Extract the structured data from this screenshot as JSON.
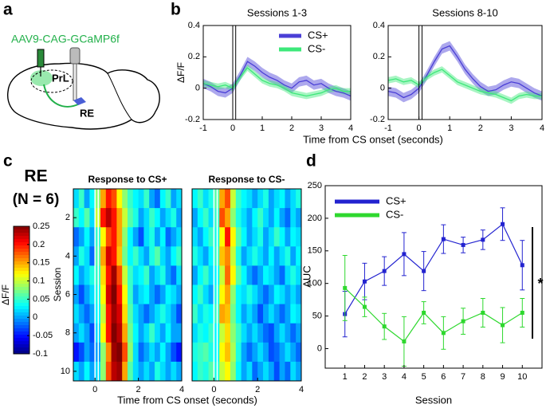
{
  "panel_labels": [
    "a",
    "b",
    "c",
    "d"
  ],
  "diagram": {
    "virus": "AAV9-CAG-GCaMP6f",
    "regions": [
      "PrL",
      "RE"
    ]
  },
  "chart_data": [
    {
      "type": "line",
      "title": "Sessions 1-3",
      "ylabel": "ΔF/F",
      "xlabel": "Time from CS onset (seconds)",
      "legend": "upper right",
      "x": [
        -1,
        -0.75,
        -0.5,
        -0.25,
        0,
        0.25,
        0.5,
        0.75,
        1,
        1.25,
        1.5,
        1.75,
        2,
        2.25,
        2.5,
        2.75,
        3,
        3.25,
        3.5,
        3.75,
        4
      ],
      "xlim": [
        -1,
        4
      ],
      "xticks": [
        -1,
        0,
        1,
        2,
        3,
        4
      ],
      "ylim": [
        -0.2,
        0.4
      ],
      "yticks": [
        -0.2,
        0,
        0.2,
        0.4
      ],
      "series": [
        {
          "name": "CS+",
          "color": "#4a3fd6",
          "values": [
            0.03,
            0.01,
            -0.02,
            -0.03,
            0.0,
            0.08,
            0.17,
            0.14,
            0.1,
            0.07,
            0.05,
            0.02,
            0.0,
            0.04,
            0.05,
            0.02,
            0.03,
            0.0,
            -0.02,
            -0.03,
            -0.05
          ],
          "errors": [
            0.03,
            0.03,
            0.03,
            0.03,
            0.03,
            0.03,
            0.03,
            0.03,
            0.03,
            0.03,
            0.03,
            0.03,
            0.03,
            0.03,
            0.03,
            0.03,
            0.03,
            0.03,
            0.03,
            0.03,
            0.03
          ]
        },
        {
          "name": "CS-",
          "color": "#3de87a",
          "values": [
            0.03,
            0.02,
            0.01,
            0.02,
            0.0,
            0.07,
            0.13,
            0.09,
            0.05,
            0.03,
            0.02,
            0.0,
            -0.03,
            -0.04,
            -0.05,
            -0.04,
            -0.03,
            -0.01,
            0.0,
            -0.02,
            -0.02
          ],
          "errors": [
            0.02,
            0.02,
            0.02,
            0.02,
            0.02,
            0.02,
            0.02,
            0.02,
            0.02,
            0.02,
            0.02,
            0.02,
            0.02,
            0.02,
            0.02,
            0.02,
            0.02,
            0.02,
            0.02,
            0.02,
            0.02
          ]
        }
      ]
    },
    {
      "type": "line",
      "title": "Sessions 8-10",
      "x": [
        -1,
        -0.75,
        -0.5,
        -0.25,
        0,
        0.25,
        0.5,
        0.75,
        1,
        1.25,
        1.5,
        1.75,
        2,
        2.25,
        2.5,
        2.75,
        3,
        3.25,
        3.5,
        3.75,
        4
      ],
      "xlim": [
        -1,
        4
      ],
      "xticks": [
        -1,
        0,
        1,
        2,
        3,
        4
      ],
      "ylim": [
        -0.2,
        0.4
      ],
      "yticks": [
        -0.2,
        0,
        0.2,
        0.4
      ],
      "series": [
        {
          "name": "CS+",
          "color": "#4a3fd6",
          "values": [
            -0.02,
            -0.03,
            -0.06,
            -0.04,
            0.0,
            0.08,
            0.17,
            0.25,
            0.27,
            0.2,
            0.12,
            0.06,
            0.01,
            -0.02,
            -0.01,
            0.02,
            0.04,
            0.03,
            0.0,
            -0.03,
            -0.05
          ],
          "errors": [
            0.03,
            0.03,
            0.03,
            0.03,
            0.03,
            0.03,
            0.03,
            0.03,
            0.03,
            0.03,
            0.03,
            0.03,
            0.03,
            0.03,
            0.03,
            0.03,
            0.03,
            0.03,
            0.03,
            0.03,
            0.03
          ]
        },
        {
          "name": "CS-",
          "color": "#3de87a",
          "values": [
            0.05,
            0.06,
            0.04,
            0.05,
            0.02,
            0.07,
            0.1,
            0.12,
            0.08,
            0.04,
            0.02,
            0.0,
            -0.02,
            -0.03,
            -0.04,
            -0.06,
            -0.08,
            -0.05,
            -0.04,
            -0.05,
            -0.05
          ],
          "errors": [
            0.02,
            0.02,
            0.02,
            0.02,
            0.02,
            0.02,
            0.02,
            0.02,
            0.02,
            0.02,
            0.02,
            0.02,
            0.02,
            0.02,
            0.02,
            0.02,
            0.02,
            0.02,
            0.02,
            0.02,
            0.02
          ]
        }
      ]
    },
    {
      "type": "heatmap",
      "title": "Response to CS+",
      "group_label": "RE",
      "n_label": "(N = 6)",
      "ylabel": "Session",
      "xlabel": "Time from CS onset (seconds)",
      "clabel": "ΔF/F",
      "clim": [
        -0.1,
        0.25
      ],
      "cticks": [
        0.25,
        0.2,
        0.15,
        0.1,
        0.05,
        0,
        -0.05,
        -0.1
      ],
      "xbins": [
        -1,
        -0.75,
        -0.5,
        -0.25,
        0,
        0.25,
        0.5,
        0.75,
        1,
        1.25,
        1.5,
        1.75,
        2,
        2.25,
        2.5,
        2.75,
        3,
        3.25,
        3.5,
        3.75,
        4
      ],
      "xlim": [
        -1,
        4
      ],
      "xticks": [
        0,
        2,
        4
      ],
      "y": [
        1,
        2,
        3,
        4,
        5,
        6,
        7,
        8,
        9,
        10
      ],
      "ylim": [
        0.5,
        10.5
      ],
      "yticks": [
        2,
        4,
        6,
        8,
        10
      ],
      "z": [
        [
          0.02,
          0.05,
          0.0,
          0.03,
          0.08,
          0.15,
          0.2,
          0.18,
          0.12,
          0.08,
          0.05,
          0.03,
          0.02,
          0.05,
          0.0,
          -0.02,
          0.03,
          0.05,
          0.0,
          0.02
        ],
        [
          0.05,
          0.03,
          0.06,
          0.02,
          0.1,
          0.2,
          0.23,
          0.2,
          0.15,
          0.1,
          0.06,
          0.04,
          0.0,
          0.02,
          0.05,
          0.03,
          0.0,
          0.02,
          0.04,
          0.0
        ],
        [
          -0.02,
          0.0,
          0.03,
          0.0,
          0.05,
          0.12,
          0.18,
          0.2,
          0.15,
          0.08,
          0.03,
          0.0,
          -0.03,
          0.02,
          0.04,
          0.0,
          0.03,
          -0.02,
          0.0,
          0.02
        ],
        [
          0.0,
          0.04,
          0.02,
          -0.02,
          0.06,
          0.15,
          0.22,
          0.2,
          0.14,
          0.07,
          0.03,
          0.05,
          0.02,
          0.0,
          0.04,
          0.06,
          0.02,
          0.0,
          0.03,
          0.05
        ],
        [
          0.03,
          0.0,
          0.02,
          0.04,
          0.05,
          0.13,
          0.2,
          0.24,
          0.18,
          0.1,
          0.05,
          0.02,
          0.03,
          0.05,
          0.0,
          0.02,
          0.04,
          0.0,
          -0.02,
          0.02
        ],
        [
          0.0,
          -0.03,
          0.0,
          0.02,
          0.04,
          0.12,
          0.22,
          0.25,
          0.2,
          0.12,
          0.05,
          0.0,
          0.02,
          0.03,
          0.0,
          -0.02,
          0.0,
          0.03,
          0.02,
          0.0
        ],
        [
          0.02,
          0.0,
          -0.02,
          0.0,
          0.03,
          0.1,
          0.2,
          0.24,
          0.22,
          0.13,
          0.06,
          0.02,
          0.0,
          -0.02,
          0.0,
          0.02,
          0.04,
          0.02,
          0.0,
          -0.03
        ],
        [
          0.0,
          0.02,
          0.0,
          -0.03,
          0.02,
          0.12,
          0.2,
          0.25,
          0.23,
          0.15,
          0.07,
          0.03,
          0.0,
          0.02,
          0.05,
          0.02,
          0.0,
          0.03,
          0.0,
          0.0
        ],
        [
          -0.05,
          -0.03,
          0.0,
          -0.02,
          0.0,
          0.08,
          0.16,
          0.24,
          0.25,
          0.18,
          0.08,
          0.02,
          -0.02,
          0.0,
          0.02,
          0.0,
          0.03,
          0.0,
          -0.03,
          -0.05
        ],
        [
          0.02,
          0.0,
          0.03,
          0.0,
          0.02,
          0.08,
          0.18,
          0.23,
          0.24,
          0.15,
          0.06,
          0.02,
          0.0,
          0.02,
          0.0,
          0.04,
          0.02,
          0.0,
          0.02,
          0.0
        ]
      ]
    },
    {
      "type": "heatmap",
      "title": "Response to CS-",
      "clim": [
        -0.1,
        0.25
      ],
      "xbins": [
        -1,
        -0.75,
        -0.5,
        -0.25,
        0,
        0.25,
        0.5,
        0.75,
        1,
        1.25,
        1.5,
        1.75,
        2,
        2.25,
        2.5,
        2.75,
        3,
        3.25,
        3.5,
        3.75,
        4
      ],
      "xlim": [
        -1,
        4
      ],
      "xticks": [
        0,
        2,
        4
      ],
      "y": [
        1,
        2,
        3,
        4,
        5,
        6,
        7,
        8,
        9,
        10
      ],
      "ylim": [
        0.5,
        10.5
      ],
      "z": [
        [
          0.03,
          0.05,
          0.02,
          0.04,
          0.06,
          0.15,
          0.18,
          0.1,
          0.05,
          0.03,
          0.02,
          0.0,
          0.02,
          0.04,
          0.0,
          0.02,
          0.03,
          0.0,
          0.02,
          0.04
        ],
        [
          0.0,
          0.03,
          0.05,
          0.02,
          0.05,
          0.18,
          0.15,
          0.08,
          0.04,
          0.02,
          0.0,
          0.03,
          0.05,
          0.02,
          0.0,
          0.03,
          0.0,
          -0.02,
          0.02,
          0.0
        ],
        [
          0.02,
          0.0,
          0.03,
          0.05,
          0.04,
          0.12,
          0.2,
          0.12,
          0.06,
          0.03,
          0.0,
          0.02,
          0.04,
          0.0,
          0.02,
          0.05,
          0.03,
          0.0,
          0.03,
          0.02
        ],
        [
          0.04,
          0.02,
          0.0,
          0.03,
          0.05,
          0.14,
          0.16,
          0.1,
          0.04,
          0.0,
          0.02,
          0.04,
          0.02,
          0.0,
          0.03,
          0.0,
          0.02,
          0.04,
          0.0,
          0.03
        ],
        [
          0.0,
          0.03,
          0.05,
          0.02,
          0.03,
          0.1,
          0.17,
          0.12,
          0.06,
          0.03,
          0.0,
          -0.02,
          0.0,
          0.03,
          0.02,
          0.0,
          -0.02,
          0.02,
          0.04,
          0.02
        ],
        [
          0.03,
          0.05,
          0.02,
          0.0,
          0.04,
          0.12,
          0.15,
          0.08,
          0.03,
          0.02,
          0.04,
          0.02,
          0.0,
          -0.02,
          0.0,
          0.03,
          0.02,
          0.0,
          0.02,
          0.0
        ],
        [
          0.05,
          0.02,
          0.04,
          0.03,
          0.05,
          0.15,
          0.14,
          0.07,
          0.03,
          0.0,
          0.02,
          0.0,
          -0.03,
          0.0,
          0.02,
          0.0,
          -0.02,
          0.0,
          0.03,
          0.02
        ],
        [
          0.02,
          0.04,
          0.03,
          0.05,
          0.03,
          0.1,
          0.13,
          0.08,
          0.05,
          0.02,
          0.0,
          0.02,
          0.0,
          -0.02,
          -0.03,
          0.0,
          0.02,
          0.0,
          -0.02,
          0.0
        ],
        [
          0.04,
          0.05,
          0.06,
          0.04,
          0.03,
          0.12,
          0.14,
          0.09,
          0.04,
          0.0,
          -0.02,
          0.0,
          0.02,
          0.0,
          -0.03,
          -0.02,
          0.0,
          0.02,
          0.0,
          -0.02
        ],
        [
          0.03,
          0.05,
          0.04,
          0.06,
          0.04,
          0.1,
          0.12,
          0.08,
          0.03,
          0.0,
          0.02,
          -0.02,
          0.0,
          0.02,
          0.0,
          -0.03,
          0.0,
          -0.02,
          0.02,
          0.0
        ]
      ]
    },
    {
      "type": "errorbar",
      "xlabel": "Session",
      "ylabel": "AUC",
      "legend": "upper left",
      "annotation": "*",
      "x": [
        1,
        2,
        3,
        4,
        5,
        6,
        7,
        8,
        9,
        10
      ],
      "xlim": [
        0,
        11
      ],
      "xticks": [
        1,
        2,
        3,
        4,
        5,
        6,
        7,
        8,
        9,
        10
      ],
      "ylim": [
        -30,
        250
      ],
      "yticks": [
        0,
        50,
        100,
        150,
        200,
        250
      ],
      "series": [
        {
          "name": "CS+",
          "color": "#2323d0",
          "values": [
            53,
            103,
            119,
            145,
            119,
            168,
            159,
            167,
            191,
            128
          ],
          "errors": [
            35,
            28,
            22,
            33,
            30,
            22,
            12,
            15,
            25,
            38
          ]
        },
        {
          "name": "CS-",
          "color": "#2ed82e",
          "values": [
            93,
            64,
            34,
            11,
            55,
            24,
            42,
            55,
            36,
            55
          ],
          "errors": [
            50,
            15,
            20,
            38,
            17,
            25,
            20,
            22,
            27,
            22
          ]
        }
      ]
    }
  ]
}
